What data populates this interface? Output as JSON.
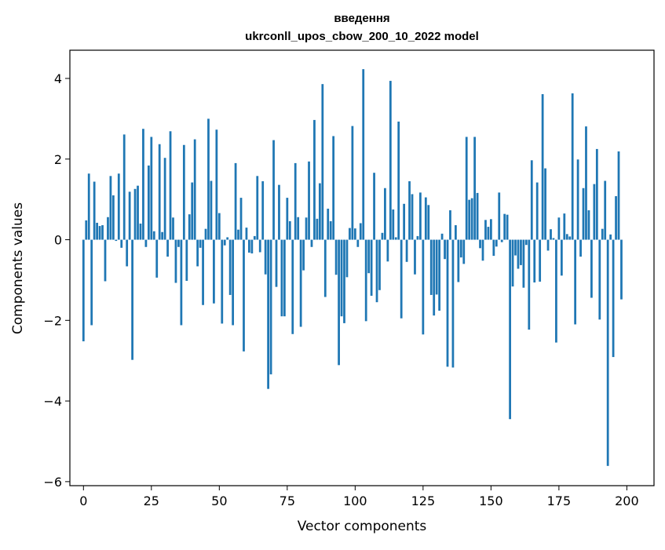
{
  "chart_data": {
    "type": "bar",
    "title": "введення\nukrconll_upos_cbow_200_10_2022 model",
    "title_lines": [
      "введення",
      "ukrconll_upos_cbow_200_10_2022 model"
    ],
    "xlabel": "Vector components",
    "ylabel": "Components values",
    "xlim": [
      -5,
      210
    ],
    "ylim": [
      -6.1,
      4.7
    ],
    "xticks": [
      0,
      25,
      50,
      75,
      100,
      125,
      150,
      175,
      200
    ],
    "xtick_labels": [
      "0",
      "25",
      "50",
      "75",
      "100",
      "125",
      "150",
      "175",
      "200"
    ],
    "yticks": [
      -6,
      -4,
      -2,
      0,
      2,
      4
    ],
    "ytick_labels": [
      "−6",
      "−4",
      "−2",
      "0",
      "2",
      "4"
    ],
    "grid": false,
    "bar_color": "#1f77b4",
    "x_start": 0,
    "values": [
      -2.52,
      0.48,
      1.64,
      -2.12,
      1.44,
      0.42,
      0.34,
      0.36,
      -1.03,
      0.56,
      1.58,
      1.1,
      -0.03,
      1.64,
      -0.2,
      2.61,
      -0.66,
      1.19,
      -2.98,
      1.26,
      1.34,
      0.4,
      2.75,
      -0.18,
      1.84,
      2.55,
      0.21,
      -0.94,
      2.37,
      0.19,
      2.03,
      -0.42,
      2.69,
      0.55,
      -1.07,
      -0.18,
      -2.12,
      2.35,
      -1.02,
      0.63,
      1.42,
      2.49,
      -0.66,
      -0.2,
      -1.62,
      0.27,
      3.0,
      1.46,
      -1.58,
      2.73,
      0.66,
      -2.08,
      -0.14,
      0.06,
      -1.37,
      -2.12,
      1.9,
      0.25,
      1.04,
      -2.77,
      0.3,
      -0.32,
      -0.34,
      0.09,
      1.58,
      -0.31,
      1.45,
      -0.86,
      -3.7,
      -3.34,
      2.47,
      -1.17,
      1.36,
      -1.9,
      -1.9,
      1.04,
      0.46,
      -2.34,
      1.9,
      0.56,
      -2.16,
      -0.76,
      0.55,
      1.94,
      -0.18,
      2.97,
      0.52,
      1.4,
      3.86,
      -1.42,
      0.77,
      0.46,
      2.57,
      -0.87,
      -3.11,
      -1.9,
      -2.07,
      -0.93,
      0.29,
      2.82,
      0.28,
      -0.18,
      0.41,
      4.23,
      -2.02,
      -0.83,
      -1.39,
      1.66,
      -1.55,
      -1.25,
      0.17,
      1.28,
      -0.54,
      3.94,
      0.75,
      0.06,
      2.93,
      -1.95,
      0.89,
      -0.55,
      1.45,
      1.13,
      -0.86,
      0.09,
      1.17,
      -2.35,
      1.05,
      0.86,
      -1.37,
      -1.88,
      -1.36,
      -1.76,
      0.15,
      -0.48,
      -3.15,
      0.73,
      -3.17,
      0.36,
      -1.05,
      -0.44,
      -0.6,
      2.55,
      0.99,
      1.03,
      2.55,
      1.16,
      -0.21,
      -0.52,
      0.49,
      0.32,
      0.51,
      -0.4,
      -0.17,
      1.17,
      -0.06,
      0.64,
      0.62,
      -4.45,
      -1.16,
      -0.39,
      -0.72,
      -0.63,
      -1.19,
      -0.13,
      -2.23,
      1.97,
      -1.06,
      1.42,
      -1.04,
      3.61,
      1.77,
      -0.27,
      0.26,
      0.04,
      -2.55,
      0.55,
      -0.89,
      0.65,
      0.14,
      0.08,
      3.63,
      -2.1,
      1.99,
      -0.42,
      1.28,
      2.81,
      0.73,
      -1.44,
      1.38,
      2.25,
      -1.98,
      0.27,
      1.46,
      -5.61,
      0.13,
      -2.91,
      1.08,
      2.19,
      -1.48
    ]
  }
}
